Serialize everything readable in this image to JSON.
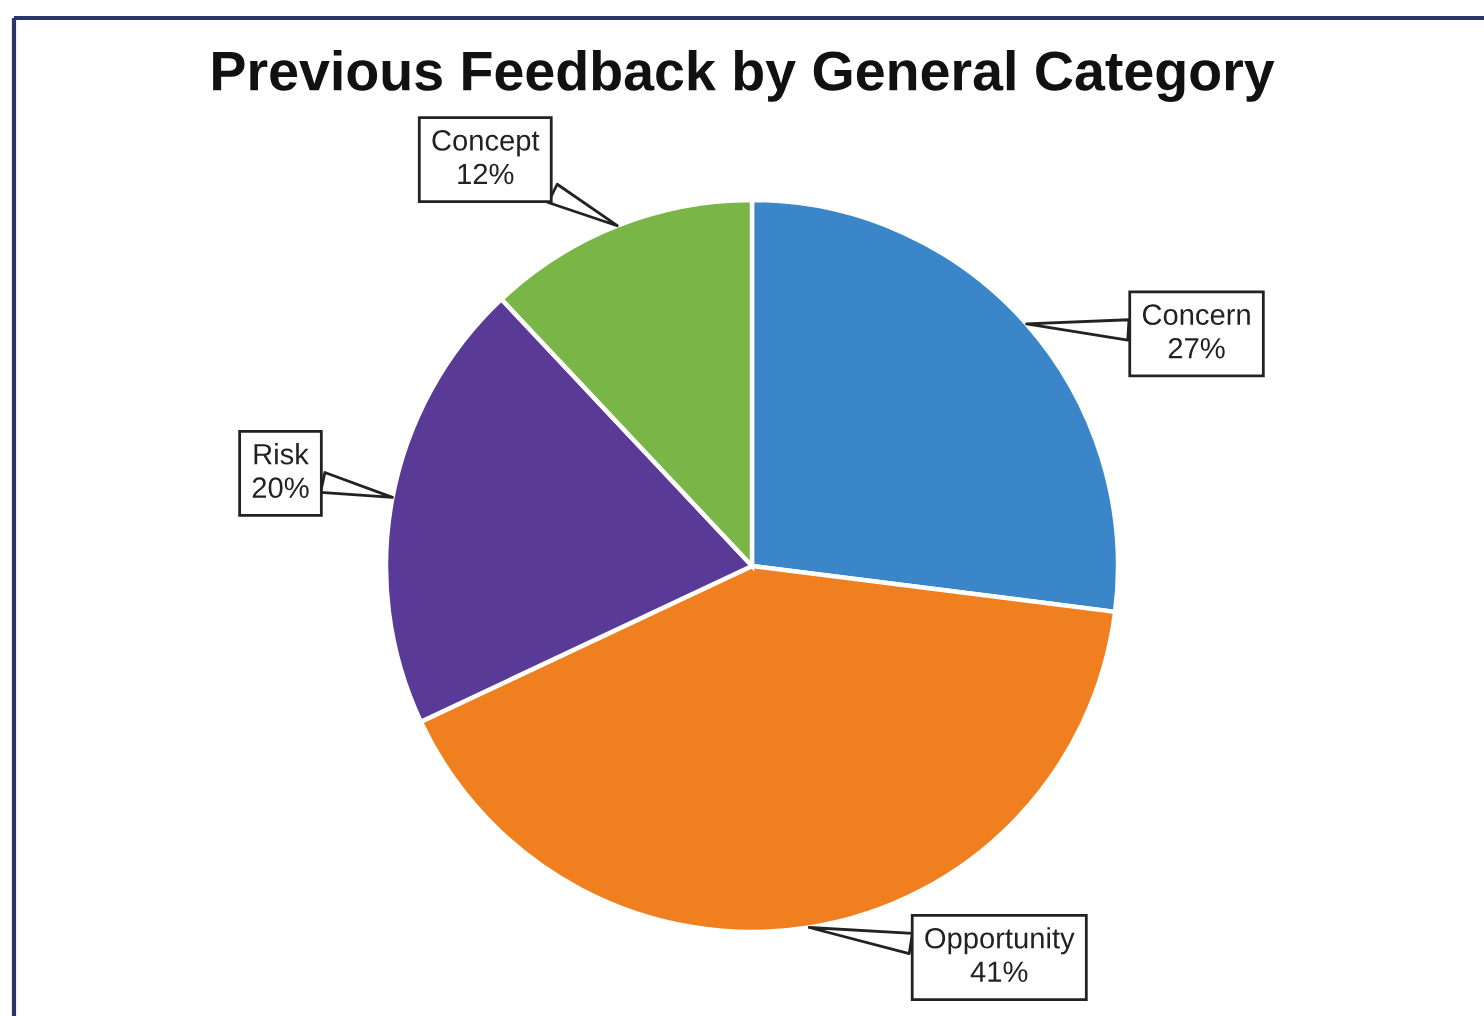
{
  "chart_data": {
    "type": "pie",
    "title": "Previous Feedback by General Category",
    "categories": [
      "Concern",
      "Opportunity",
      "Risk",
      "Concept"
    ],
    "values": [
      27,
      41,
      20,
      12
    ],
    "colors": [
      "#3b86c8",
      "#f07f20",
      "#5a3a97",
      "#79b547"
    ],
    "value_labels": [
      "27%",
      "41%",
      "20%",
      "12%"
    ]
  }
}
